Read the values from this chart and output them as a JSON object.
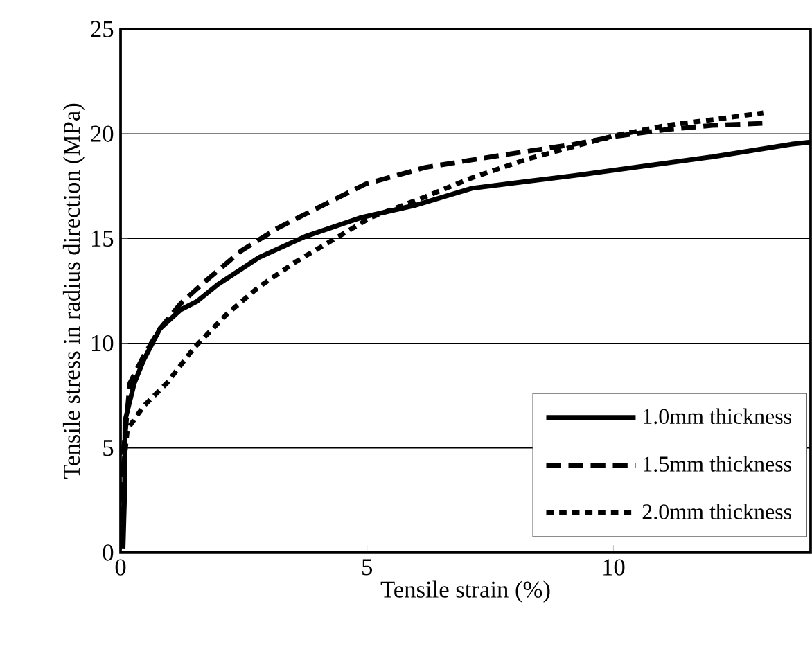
{
  "chart_data": {
    "type": "line",
    "xlabel": "Tensile strain (%)",
    "ylabel": "Tensile stress in radius direction (MPa)",
    "xlim": [
      0,
      14
    ],
    "ylim": [
      0,
      25
    ],
    "xticks": [
      0,
      5,
      10
    ],
    "yticks": [
      0,
      5,
      10,
      15,
      20,
      25
    ],
    "grid": "y",
    "legend": "bottom right",
    "marker": "none",
    "series": [
      {
        "name": "1.0mm thickness",
        "color": "#000000",
        "line_style": "solid",
        "x": [
          0.05,
          0.08,
          0.09,
          0.28,
          0.47,
          0.8,
          1.22,
          1.55,
          1.97,
          2.81,
          3.75,
          4.88,
          6.0,
          7.13,
          9.19,
          12.0,
          13.6,
          14.0
        ],
        "values": [
          0.2,
          2.6,
          6.3,
          8.1,
          9.2,
          10.7,
          11.6,
          12.0,
          12.8,
          14.1,
          15.1,
          16.0,
          16.6,
          17.4,
          18.0,
          18.9,
          19.5,
          19.6
        ]
      },
      {
        "name": "1.5mm thickness",
        "color": "#000000",
        "line_style": "dashed",
        "x": [
          0.02,
          0.05,
          0.19,
          0.47,
          0.8,
          1.22,
          1.69,
          2.44,
          3.19,
          4.03,
          4.97,
          6.19,
          7.79,
          9.19,
          10.1,
          11.07,
          12.0,
          13.04
        ],
        "values": [
          1.5,
          4.6,
          8.1,
          9.4,
          10.7,
          11.9,
          12.9,
          14.4,
          15.5,
          16.5,
          17.6,
          18.4,
          19.0,
          19.5,
          19.9,
          20.2,
          20.4,
          20.5
        ]
      },
      {
        "name": "2.0mm thickness",
        "color": "#000000",
        "line_style": "dotted",
        "x": [
          0.02,
          0.05,
          0.14,
          0.47,
          0.94,
          1.5,
          2.16,
          2.81,
          3.56,
          4.5,
          5.07,
          6.19,
          7.13,
          8.26,
          10.0,
          11.07,
          12.1,
          13.04
        ],
        "values": [
          2.4,
          3.9,
          5.9,
          7.0,
          8.1,
          9.8,
          11.4,
          12.7,
          13.9,
          15.2,
          16.0,
          17.0,
          17.9,
          18.8,
          19.9,
          20.4,
          20.7,
          21.0
        ]
      }
    ]
  }
}
